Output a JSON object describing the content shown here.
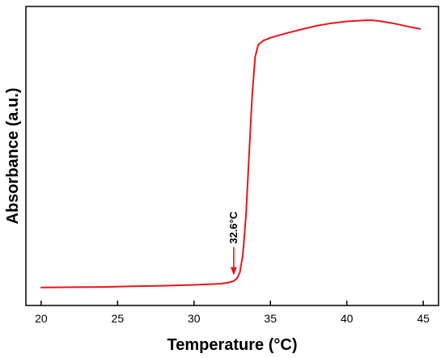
{
  "chart_data": {
    "type": "line",
    "xlabel": "Temperature (°C)",
    "ylabel": "Absorbance (a.u.)",
    "xlim": [
      19,
      46
    ],
    "ylim": [
      0,
      1
    ],
    "x_ticks": [
      20,
      25,
      30,
      35,
      40,
      45
    ],
    "y_ticks_visible": false,
    "grid": false,
    "series": [
      {
        "color": "#e8161b",
        "points": [
          [
            20.0,
            0.06
          ],
          [
            22.0,
            0.061
          ],
          [
            24.0,
            0.062
          ],
          [
            26.0,
            0.064
          ],
          [
            28.0,
            0.066
          ],
          [
            30.0,
            0.069
          ],
          [
            31.0,
            0.071
          ],
          [
            31.8,
            0.073
          ],
          [
            32.3,
            0.077
          ],
          [
            32.6,
            0.082
          ],
          [
            32.8,
            0.09
          ],
          [
            33.0,
            0.11
          ],
          [
            33.2,
            0.17
          ],
          [
            33.4,
            0.3
          ],
          [
            33.6,
            0.5
          ],
          [
            33.8,
            0.7
          ],
          [
            34.0,
            0.83
          ],
          [
            34.2,
            0.872
          ],
          [
            34.5,
            0.885
          ],
          [
            35.0,
            0.895
          ],
          [
            36.0,
            0.91
          ],
          [
            37.0,
            0.923
          ],
          [
            38.0,
            0.935
          ],
          [
            39.0,
            0.944
          ],
          [
            40.0,
            0.95
          ],
          [
            41.0,
            0.953
          ],
          [
            41.6,
            0.954
          ],
          [
            42.0,
            0.952
          ],
          [
            43.0,
            0.944
          ],
          [
            44.0,
            0.933
          ],
          [
            44.8,
            0.925
          ]
        ]
      }
    ],
    "annotations": [
      {
        "text": "32.6°C",
        "x": 32.6,
        "y": 0.082,
        "arrow": "down"
      }
    ]
  }
}
